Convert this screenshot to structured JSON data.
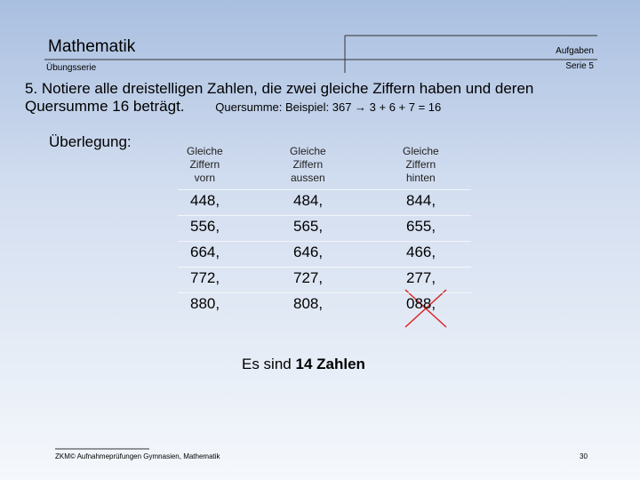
{
  "header": {
    "title": "Mathematik",
    "subtitle": "Übungsserie",
    "section": "Aufgaben",
    "series": "Serie 5"
  },
  "task": {
    "text": "5.  Notiere alle dreistelligen Zahlen, die zwei gleiche Ziffern haben und deren Quersumme 16 beträgt.",
    "hint": "Quersumme: Beispiel: 367 → 3 + 6 + 7 = 16"
  },
  "reasoning_label": "Überlegung:",
  "table": {
    "headers": [
      [
        "Gleiche",
        "Ziffern",
        "vorn"
      ],
      [
        "Gleiche",
        "Ziffern",
        "aussen"
      ],
      [
        "Gleiche",
        "Ziffern",
        "hinten"
      ]
    ],
    "rows": [
      [
        "448,",
        "484,",
        "844,"
      ],
      [
        "556,",
        "565,",
        "655,"
      ],
      [
        "664,",
        "646,",
        "466,"
      ],
      [
        "772,",
        "727,",
        "277,"
      ],
      [
        "880,",
        "808,",
        "088,"
      ]
    ]
  },
  "conclusion": {
    "text": "Es sind",
    "emphasis": "14 Zahlen"
  },
  "footer": {
    "source": "ZKM© Aufnahmeprüfungen Gymnasien, Mathematik",
    "page": "30"
  }
}
